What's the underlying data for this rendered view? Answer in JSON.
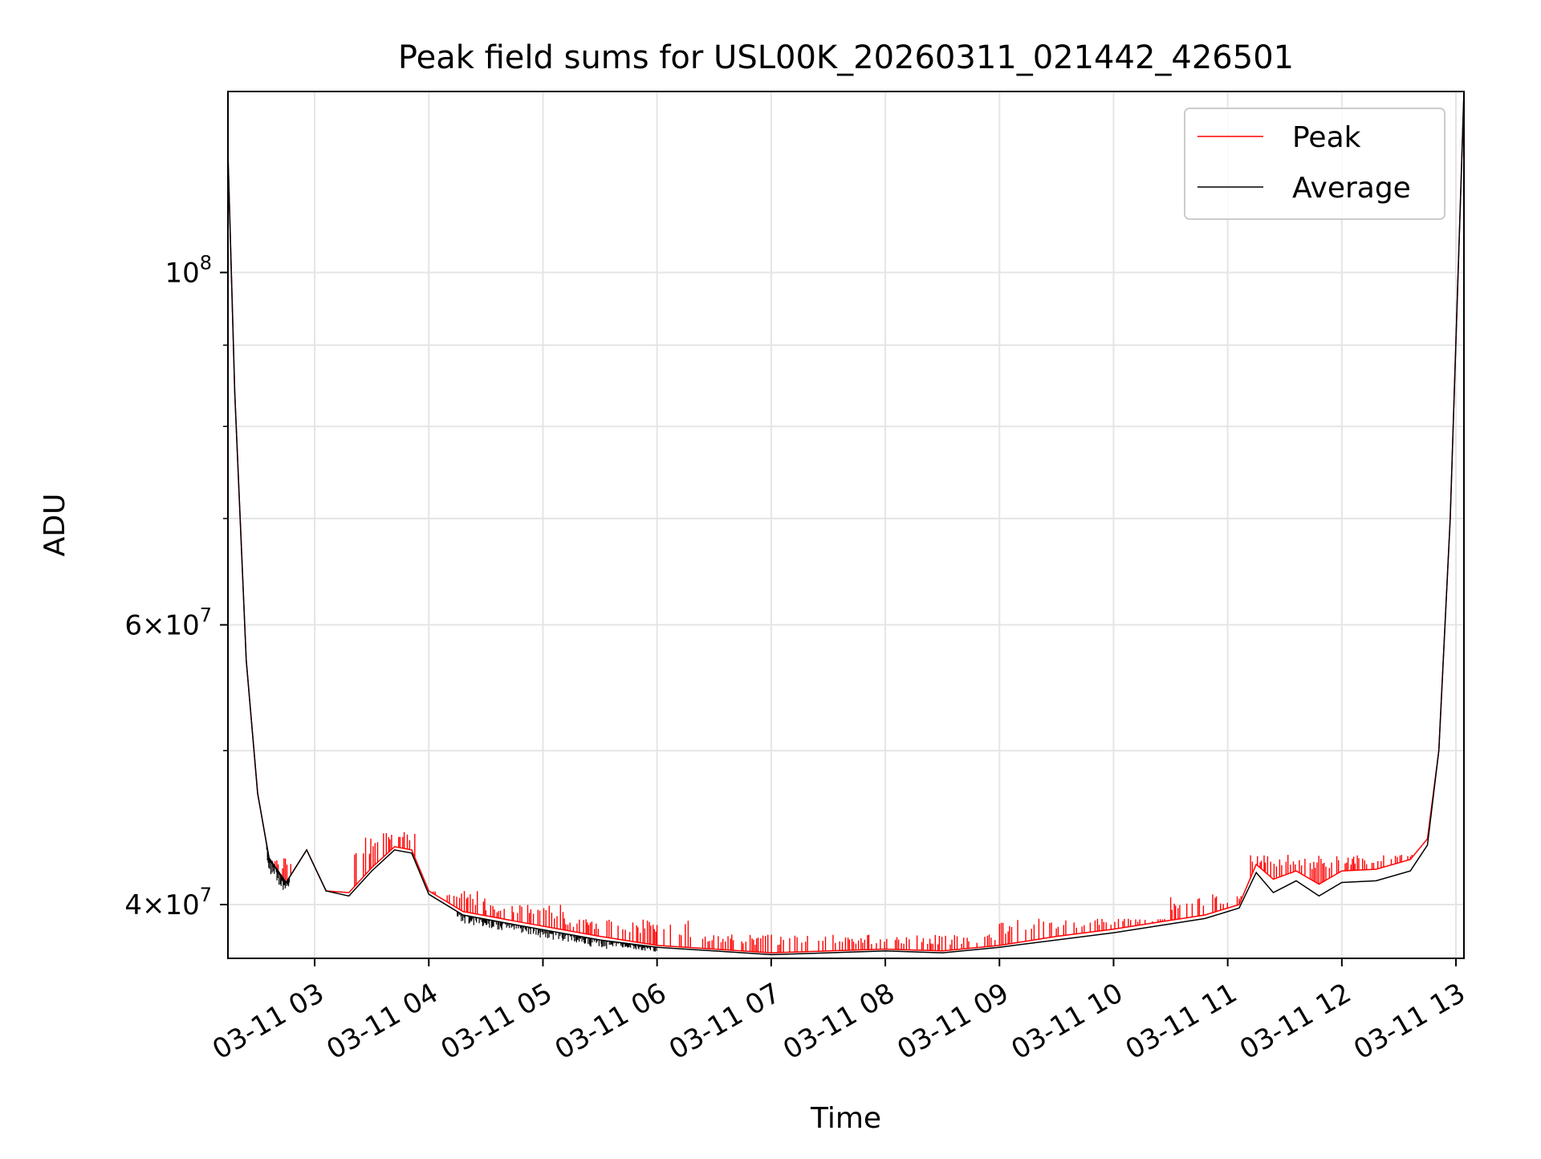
{
  "chart_data": {
    "type": "line",
    "title": "Peak field sums for USL00K_20260311_021442_426501",
    "xlabel": "Time",
    "ylabel": "ADU",
    "yscale": "log",
    "ylim": [
      37000000,
      130000000
    ],
    "xlim": [
      2.24,
      13.07
    ],
    "grid": true,
    "legend_position": "top-right",
    "x_ticks": [
      {
        "value": 3,
        "label": "03-11 03"
      },
      {
        "value": 4,
        "label": "03-11 04"
      },
      {
        "value": 5,
        "label": "03-11 05"
      },
      {
        "value": 6,
        "label": "03-11 06"
      },
      {
        "value": 7,
        "label": "03-11 07"
      },
      {
        "value": 8,
        "label": "03-11 08"
      },
      {
        "value": 9,
        "label": "03-11 09"
      },
      {
        "value": 10,
        "label": "03-11 10"
      },
      {
        "value": 11,
        "label": "03-11 11"
      },
      {
        "value": 12,
        "label": "03-11 12"
      },
      {
        "value": 13,
        "label": "03-11 13"
      }
    ],
    "y_major_ticks": [
      {
        "value": 100000000,
        "base": "10",
        "exp": "8"
      },
      {
        "value": 60000000,
        "base": "6×10",
        "exp": "7"
      },
      {
        "value": 40000000,
        "base": "4×10",
        "exp": "7"
      }
    ],
    "y_minor_ticks": [
      50000000,
      70000000,
      80000000,
      90000000
    ],
    "series": [
      {
        "name": "Peak",
        "color": "#ff0000",
        "baseline_points": [
          [
            2.24,
            119000000
          ],
          [
            2.3,
            84000000
          ],
          [
            2.4,
            57000000
          ],
          [
            2.5,
            47000000
          ],
          [
            2.6,
            42800000
          ],
          [
            2.75,
            41300000
          ],
          [
            2.93,
            43300000
          ],
          [
            3.1,
            40800000
          ],
          [
            3.3,
            40700000
          ],
          [
            3.5,
            42200000
          ],
          [
            3.7,
            43500000
          ],
          [
            3.85,
            43300000
          ],
          [
            4.0,
            40800000
          ],
          [
            4.3,
            39600000
          ],
          [
            4.8,
            39000000
          ],
          [
            5.5,
            38200000
          ],
          [
            6.0,
            37700000
          ],
          [
            6.5,
            37500000
          ],
          [
            7.0,
            37300000
          ],
          [
            7.5,
            37400000
          ],
          [
            8.0,
            37500000
          ],
          [
            8.5,
            37400000
          ],
          [
            9.0,
            37700000
          ],
          [
            9.5,
            38200000
          ],
          [
            10.0,
            38600000
          ],
          [
            10.4,
            39000000
          ],
          [
            10.8,
            39400000
          ],
          [
            11.1,
            40000000
          ],
          [
            11.25,
            42400000
          ],
          [
            11.4,
            41500000
          ],
          [
            11.6,
            42000000
          ],
          [
            11.8,
            41200000
          ],
          [
            12.0,
            42000000
          ],
          [
            12.3,
            42100000
          ],
          [
            12.6,
            42700000
          ],
          [
            12.75,
            44000000
          ],
          [
            12.85,
            50000000
          ],
          [
            12.95,
            70000000
          ],
          [
            13.07,
            130000000
          ]
        ],
        "spike_ranges": [
          {
            "from": 2.6,
            "to": 2.8,
            "max_adu": 42800000
          },
          {
            "from": 3.35,
            "to": 3.92,
            "max_adu": 44500000
          },
          {
            "from": 3.92,
            "to": 4.5,
            "max_adu": 40800000
          },
          {
            "from": 4.5,
            "to": 5.2,
            "max_adu": 40000000
          },
          {
            "from": 5.2,
            "to": 6.3,
            "max_adu": 39200000
          },
          {
            "from": 6.4,
            "to": 9.0,
            "max_adu": 38300000
          },
          {
            "from": 9.0,
            "to": 10.5,
            "max_adu": 39200000
          },
          {
            "from": 10.5,
            "to": 11.2,
            "max_adu": 40600000
          },
          {
            "from": 11.2,
            "to": 12.7,
            "max_adu": 43000000
          }
        ]
      },
      {
        "name": "Average",
        "color": "#000000",
        "points": [
          [
            2.24,
            119000000
          ],
          [
            2.3,
            84000000
          ],
          [
            2.4,
            57000000
          ],
          [
            2.5,
            47000000
          ],
          [
            2.6,
            42800000
          ],
          [
            2.75,
            41300000
          ],
          [
            2.93,
            43300000
          ],
          [
            3.1,
            40800000
          ],
          [
            3.3,
            40500000
          ],
          [
            3.5,
            42000000
          ],
          [
            3.7,
            43300000
          ],
          [
            3.85,
            43100000
          ],
          [
            4.0,
            40600000
          ],
          [
            4.3,
            39400000
          ],
          [
            4.8,
            38800000
          ],
          [
            5.5,
            38000000
          ],
          [
            6.0,
            37600000
          ],
          [
            6.5,
            37400000
          ],
          [
            7.0,
            37200000
          ],
          [
            7.5,
            37300000
          ],
          [
            8.0,
            37400000
          ],
          [
            8.5,
            37300000
          ],
          [
            9.0,
            37600000
          ],
          [
            9.5,
            38000000
          ],
          [
            10.0,
            38400000
          ],
          [
            10.4,
            38800000
          ],
          [
            10.8,
            39200000
          ],
          [
            11.1,
            39800000
          ],
          [
            11.25,
            41900000
          ],
          [
            11.4,
            40700000
          ],
          [
            11.6,
            41400000
          ],
          [
            11.8,
            40500000
          ],
          [
            12.0,
            41300000
          ],
          [
            12.3,
            41400000
          ],
          [
            12.6,
            42000000
          ],
          [
            12.75,
            43600000
          ],
          [
            12.85,
            50000000
          ],
          [
            12.95,
            70000000
          ],
          [
            13.07,
            130000000
          ]
        ]
      }
    ]
  }
}
